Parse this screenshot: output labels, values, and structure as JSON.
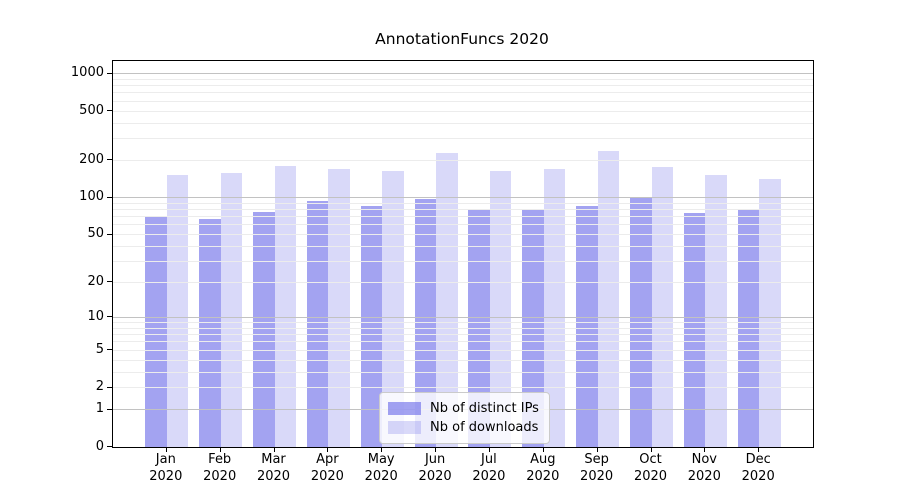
{
  "chart_data": {
    "type": "bar",
    "title": "AnnotationFuncs 2020",
    "categories": [
      "Jan",
      "Feb",
      "Mar",
      "Apr",
      "May",
      "Jun",
      "Jul",
      "Aug",
      "Sep",
      "Oct",
      "Nov",
      "Dec"
    ],
    "year_label": "2020",
    "series": [
      {
        "name": "Nb of distinct IPs",
        "color": "rgba(102,102,232,0.6)",
        "values": [
          70,
          67,
          76,
          94,
          85,
          97,
          81,
          80,
          86,
          99,
          75,
          80
        ]
      },
      {
        "name": "Nb of downloads",
        "color": "rgba(102,102,232,0.25)",
        "values": [
          152,
          159,
          180,
          169,
          164,
          231,
          165,
          169,
          240,
          177,
          153,
          141
        ]
      }
    ],
    "xlabel": "",
    "ylabel": "",
    "y_axis": {
      "scale": "log10(1+v)",
      "tick_values": [
        0,
        1,
        2,
        5,
        10,
        20,
        50,
        100,
        200,
        500,
        1000
      ],
      "major_gridline_values": [
        1,
        10,
        100,
        1000
      ],
      "minor_gridline_base": [
        2,
        3,
        4,
        5,
        6,
        7,
        8,
        9
      ],
      "ylim": [
        0,
        1265
      ]
    },
    "grid": "on",
    "legend_position": "lower-center"
  },
  "colors": {
    "grid_major": "#c2c2c2",
    "grid_minor": "#ececec",
    "axis_spine": "#000000",
    "background": "#ffffff"
  }
}
